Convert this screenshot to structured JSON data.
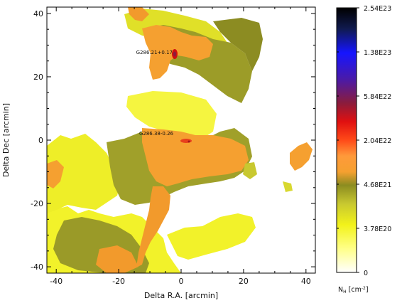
{
  "image": {
    "x_axis": {
      "label": "Delta R.A. [arcmin]",
      "ticks": [
        {
          "value": -40,
          "label": "-40"
        },
        {
          "value": -20,
          "label": "-20"
        },
        {
          "value": 0,
          "label": "0"
        },
        {
          "value": 20,
          "label": "20"
        },
        {
          "value": 40,
          "label": "40"
        }
      ],
      "range": [
        -43,
        43
      ]
    },
    "y_axis": {
      "label": "Delta Dec [arcmin]",
      "ticks": [
        {
          "value": -40,
          "label": "-40"
        },
        {
          "value": -20,
          "label": "-20"
        },
        {
          "value": 0,
          "label": "0"
        },
        {
          "value": 20,
          "label": "20"
        },
        {
          "value": 40,
          "label": "40"
        }
      ],
      "range": [
        -42,
        42
      ]
    },
    "sources": [
      {
        "name": "G286.21+0.17",
        "ra": -2,
        "dec": 28
      },
      {
        "name": "G286.38-0.26",
        "ra": 0,
        "dec": 2
      }
    ],
    "colorbar": {
      "title_main": "N",
      "title_sub": "H",
      "title_unit": " [cm",
      "title_exp": "-2",
      "title_close": "]",
      "labels": [
        "2.54E23",
        "1.38E23",
        "5.84E22",
        "2.04E22",
        "4.68E21",
        "3.78E20",
        "0"
      ],
      "colors": [
        "#000000",
        "#1a237e",
        "#1010ff",
        "#4a1aa8",
        "#8b1c3c",
        "#d11010",
        "#ff3a10",
        "#ff9a3a",
        "#f5a030",
        "#8c8c20",
        "#c8c830",
        "#f5f520",
        "#ffff80",
        "#ffffff"
      ]
    }
  }
}
